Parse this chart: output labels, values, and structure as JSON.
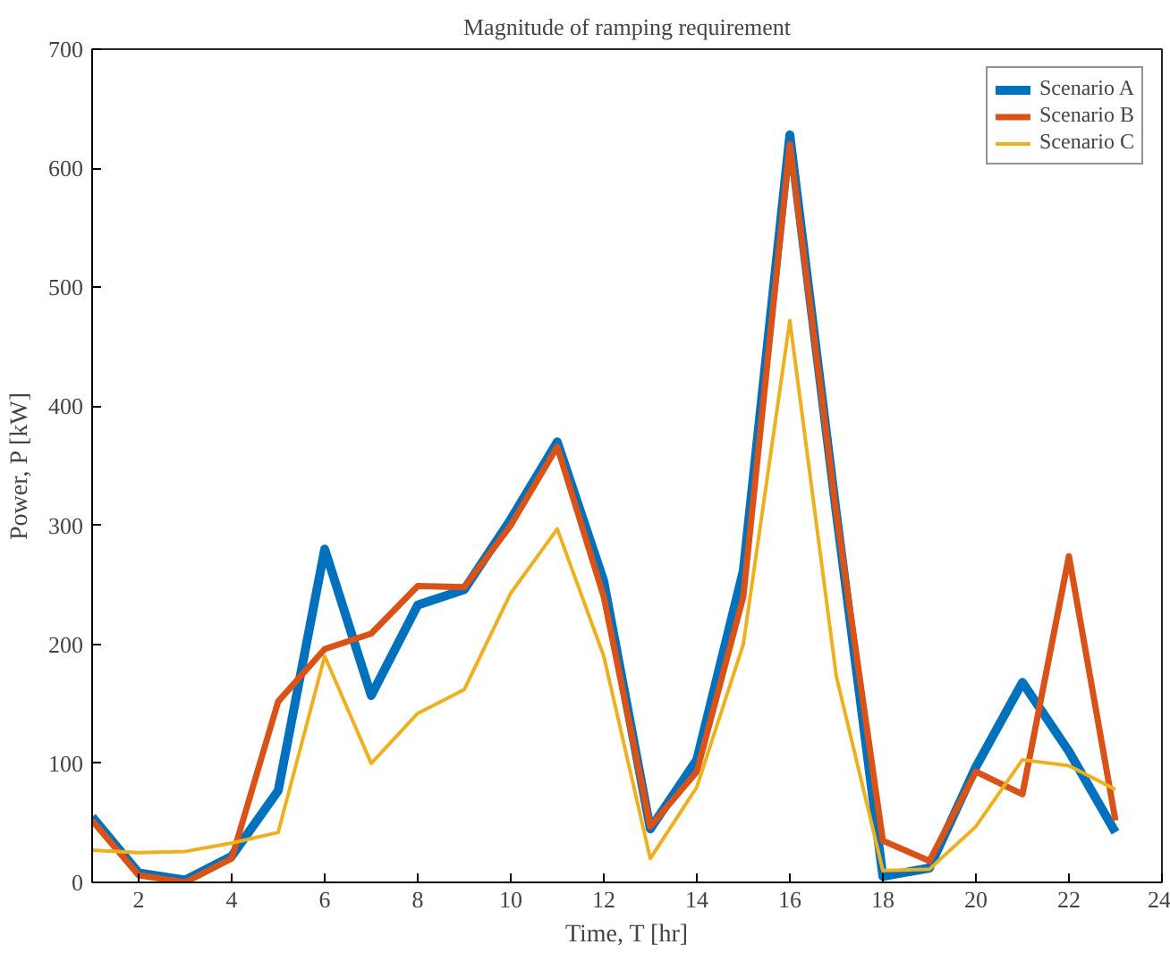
{
  "chart_data": {
    "type": "line",
    "title": "Magnitude of ramping requirement",
    "xlabel": "Time, T [hr]",
    "ylabel": "Power, P [kW]",
    "x": [
      1,
      2,
      3,
      4,
      5,
      6,
      7,
      8,
      9,
      10,
      11,
      12,
      13,
      14,
      15,
      16,
      17,
      18,
      19,
      20,
      21,
      22,
      23
    ],
    "series": [
      {
        "name": "Scenario A",
        "color": "#0072bd",
        "values": [
          55,
          8,
          2,
          22,
          77,
          280,
          157,
          233,
          246,
          305,
          370,
          253,
          45,
          103,
          262,
          628,
          310,
          5,
          12,
          97,
          168,
          110,
          42
        ]
      },
      {
        "name": "Scenario B",
        "color": "#d95319",
        "values": [
          52,
          6,
          0,
          20,
          152,
          196,
          209,
          249,
          248,
          300,
          366,
          240,
          47,
          93,
          240,
          620,
          310,
          35,
          18,
          93,
          74,
          274,
          52
        ]
      },
      {
        "name": "Scenario C",
        "color": "#edb120",
        "values": [
          27,
          25,
          26,
          33,
          42,
          190,
          100,
          142,
          162,
          243,
          297,
          190,
          20,
          80,
          200,
          472,
          173,
          10,
          11,
          47,
          103,
          98,
          78
        ]
      }
    ],
    "xlim": [
      1,
      24
    ],
    "xticks": [
      2,
      4,
      6,
      8,
      10,
      12,
      14,
      16,
      18,
      20,
      22,
      24
    ],
    "ylim": [
      0,
      700
    ],
    "yticks": [
      0,
      100,
      200,
      300,
      400,
      500,
      600,
      700
    ],
    "grid": false,
    "legend": "top right",
    "line_style": "solid"
  }
}
